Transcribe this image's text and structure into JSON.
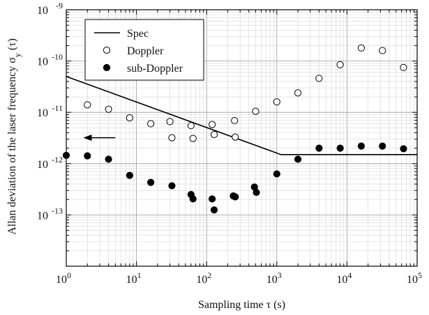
{
  "chart_data": {
    "type": "scatter",
    "xlabel": "Sampling time τ (s)",
    "ylabel": "Allan deviation of the laser frequency σ",
    "ylabel_sub": "y",
    "ylabel_suffix": " (τ)",
    "xscale": "log",
    "yscale": "log",
    "xlim": [
      1,
      100000
    ],
    "ylim": [
      1e-14,
      1e-09
    ],
    "grid": true,
    "legend_position": "top-left",
    "x_ticks": [
      {
        "value": 1,
        "base": "10",
        "exp": "0"
      },
      {
        "value": 10,
        "base": "10",
        "exp": "1"
      },
      {
        "value": 100,
        "base": "10",
        "exp": "2"
      },
      {
        "value": 1000,
        "base": "10",
        "exp": "3"
      },
      {
        "value": 10000,
        "base": "10",
        "exp": "4"
      },
      {
        "value": 100000,
        "base": "10",
        "exp": "5"
      }
    ],
    "y_ticks": [
      {
        "value": 1e-13,
        "base": "10",
        "exp": "-13"
      },
      {
        "value": 1e-12,
        "base": "10",
        "exp": "-12"
      },
      {
        "value": 1e-11,
        "base": "10",
        "exp": "-11"
      },
      {
        "value": 1e-10,
        "base": "10",
        "exp": "-10"
      },
      {
        "value": 1e-09,
        "base": "10",
        "exp": "-9"
      }
    ],
    "series": [
      {
        "name": "Spec",
        "kind": "line",
        "color": "#000000",
        "x": [
          1,
          1150,
          100000
        ],
        "y": [
          5e-11,
          1.5e-12,
          1.5e-12
        ]
      },
      {
        "name": "Doppler",
        "kind": "open-circle",
        "color": "#000000",
        "x": [
          2,
          4,
          8,
          16,
          30,
          32,
          60,
          64,
          120,
          128,
          250,
          256,
          500,
          1000,
          2000,
          4000,
          8000,
          16000,
          32000,
          64000
        ],
        "y": [
          1.4e-11,
          1.15e-11,
          7.8e-12,
          6e-12,
          6.6e-12,
          3.2e-12,
          5.5e-12,
          3.1e-12,
          5.8e-12,
          3.7e-12,
          6.9e-12,
          3.3e-12,
          1.05e-11,
          1.6e-11,
          2.4e-11,
          4.6e-11,
          8.5e-11,
          1.8e-10,
          1.6e-10,
          7.5e-11
        ]
      },
      {
        "name": "sub-Doppler",
        "kind": "filled-circle",
        "color": "#000000",
        "x": [
          1,
          2,
          4,
          8,
          16,
          32,
          60,
          64,
          120,
          128,
          240,
          256,
          480,
          512,
          1000,
          2000,
          4000,
          8000,
          16000,
          32000,
          64000
        ],
        "y": [
          1.45e-12,
          1.42e-12,
          1.22e-12,
          5.9e-13,
          4.3e-13,
          3.7e-13,
          2.5e-13,
          2.05e-13,
          2.05e-13,
          1.25e-13,
          2.35e-13,
          2.25e-13,
          3.5e-13,
          2.75e-13,
          6.3e-13,
          1.22e-12,
          2e-12,
          2e-12,
          2.2e-12,
          2.2e-12,
          1.95e-12
        ]
      }
    ],
    "annotations": [
      {
        "kind": "arrow",
        "direction": "left",
        "x_from": 5,
        "x_to": 1.75,
        "y": 3.2e-12
      }
    ]
  }
}
